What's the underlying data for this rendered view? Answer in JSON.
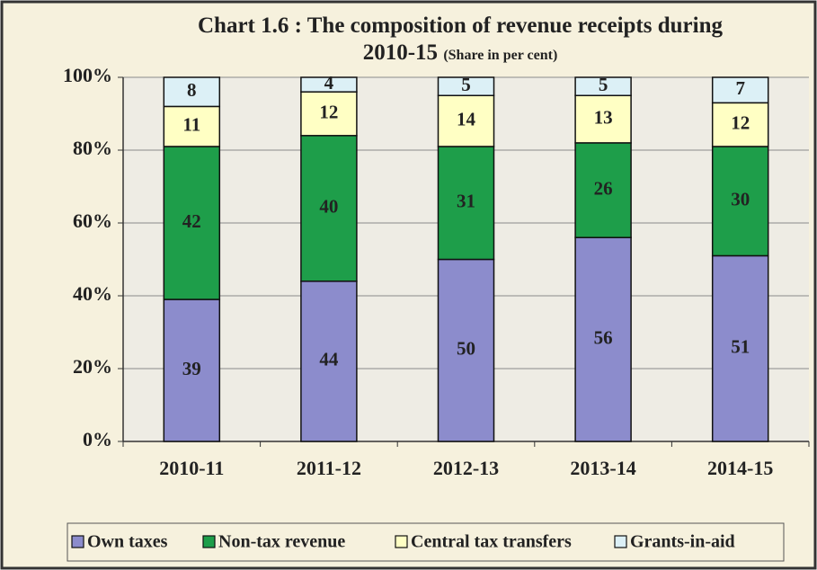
{
  "chart_data": {
    "type": "stacked_bar",
    "title": "Chart 1.6 : The composition of revenue receipts during 2010-15",
    "subtitle": "(Share in per cent)",
    "categories": [
      "2010-11",
      "2011-12",
      "2012-13",
      "2013-14",
      "2014-15"
    ],
    "series": [
      {
        "name": "Own taxes",
        "color": "#8c8ccc",
        "values": [
          39,
          44,
          50,
          56,
          51
        ]
      },
      {
        "name": "Non-tax revenue",
        "color": "#1e9e4a",
        "values": [
          42,
          40,
          31,
          26,
          30
        ]
      },
      {
        "name": "Central tax transfers",
        "color": "#ffffc4",
        "values": [
          11,
          12,
          14,
          13,
          12
        ]
      },
      {
        "name": "Grants-in-aid",
        "color": "#dcf0f6",
        "values": [
          8,
          4,
          5,
          5,
          7
        ]
      }
    ],
    "ylim": [
      0,
      100
    ],
    "yticks": [
      {
        "value": 0,
        "label": "0%"
      },
      {
        "value": 20,
        "label": "20%"
      },
      {
        "value": 40,
        "label": "40%"
      },
      {
        "value": 60,
        "label": "60%"
      },
      {
        "value": 80,
        "label": "80%"
      },
      {
        "value": 100,
        "label": "100%"
      }
    ],
    "grid": true,
    "legend": "bottom"
  }
}
